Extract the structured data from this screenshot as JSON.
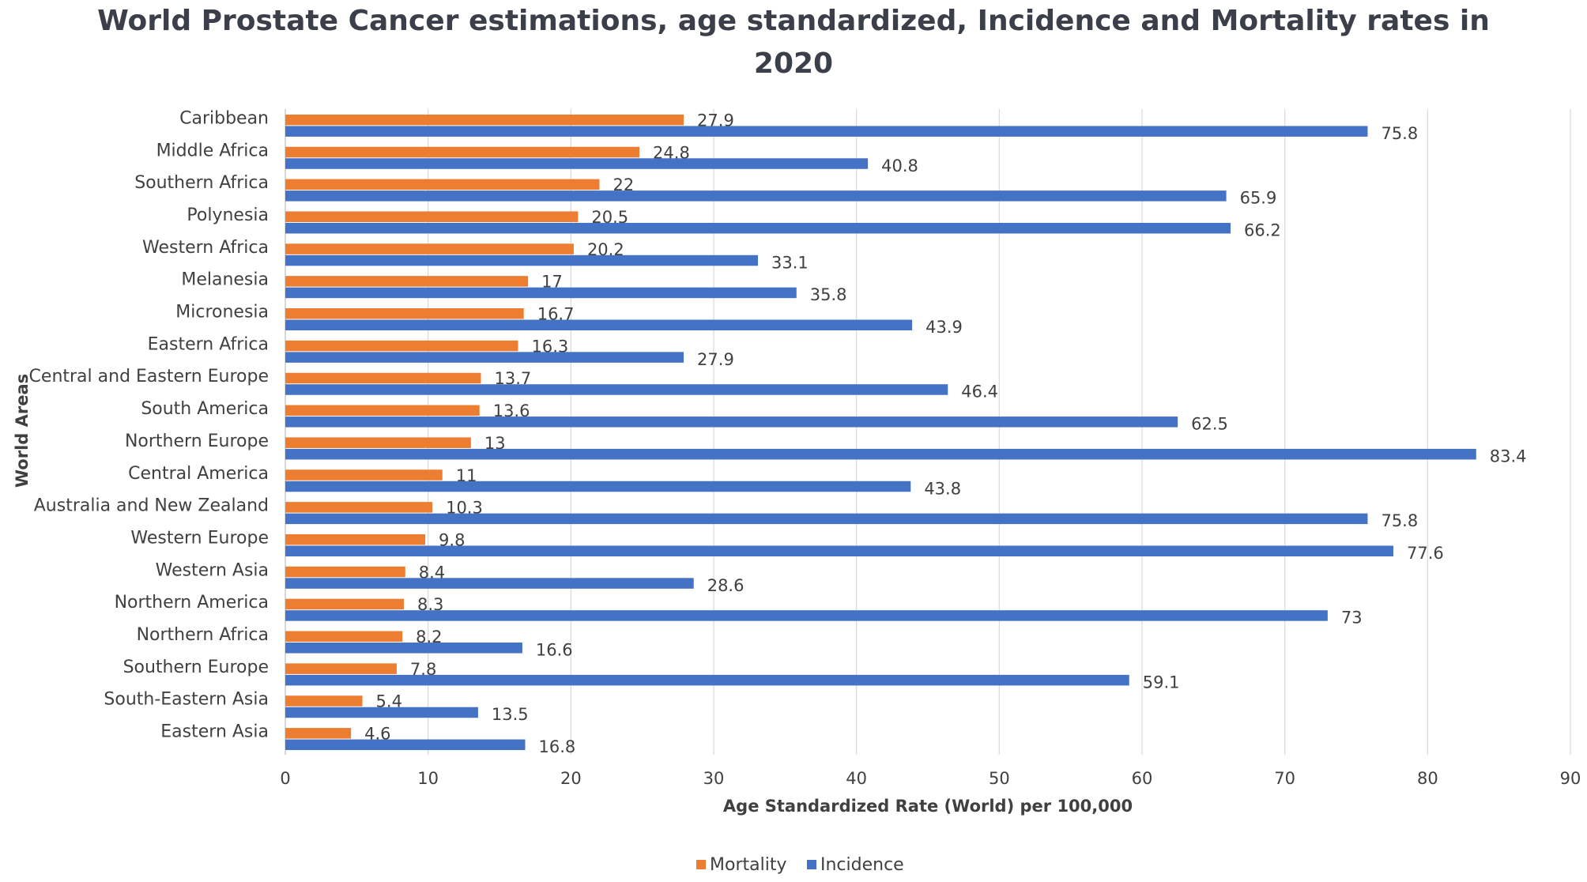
{
  "chart_data": {
    "type": "bar",
    "orientation": "horizontal",
    "title_line1": "World Prostate Cancer estimations, age standardized, Incidence and Mortality rates in",
    "title_line2": "2020",
    "xlabel": "Age Standardized Rate (World) per 100,000",
    "ylabel": "World Areas",
    "xlim": [
      0,
      90
    ],
    "xticks": [
      "0",
      "10",
      "20",
      "30",
      "40",
      "50",
      "60",
      "70",
      "80",
      "90"
    ],
    "grid": true,
    "legend_position": "bottom",
    "categories": [
      "Caribbean",
      "Middle Africa",
      "Southern Africa",
      "Polynesia",
      "Western Africa",
      "Melanesia",
      "Micronesia",
      "Eastern Africa",
      "Central and Eastern Europe",
      "South America",
      "Northern Europe",
      "Central America",
      "Australia and New Zealand",
      "Western Europe",
      "Western Asia",
      "Northern America",
      "Northern Africa",
      "Southern Europe",
      "South-Eastern Asia",
      "Eastern Asia"
    ],
    "series": [
      {
        "name": "Mortality",
        "color": "#ed7d31",
        "values": [
          27.9,
          24.8,
          22,
          20.5,
          20.2,
          17,
          16.7,
          16.3,
          13.7,
          13.6,
          13,
          11,
          10.3,
          9.8,
          8.4,
          8.3,
          8.2,
          7.8,
          5.4,
          4.6
        ],
        "labels": [
          "27.9",
          "24.8",
          "22",
          "20.5",
          "20.2",
          "17",
          "16.7",
          "16.3",
          "13.7",
          "13.6",
          "13",
          "11",
          "10.3",
          "9.8",
          "8.4",
          "8.3",
          "8.2",
          "7.8",
          "5.4",
          "4.6"
        ]
      },
      {
        "name": "Incidence",
        "color": "#4472c4",
        "values": [
          75.8,
          40.8,
          65.9,
          66.2,
          33.1,
          35.8,
          43.9,
          27.9,
          46.4,
          62.5,
          83.4,
          43.8,
          75.8,
          77.6,
          28.6,
          73,
          16.6,
          59.1,
          13.5,
          16.8
        ],
        "labels": [
          "75.8",
          "40.8",
          "65.9",
          "66.2",
          "33.1",
          "35.8",
          "43.9",
          "27.9",
          "46.4",
          "62.5",
          "83.4",
          "43.8",
          "75.8",
          "77.6",
          "28.6",
          "73",
          "16.6",
          "59.1",
          "13.5",
          "16.8"
        ]
      }
    ]
  }
}
